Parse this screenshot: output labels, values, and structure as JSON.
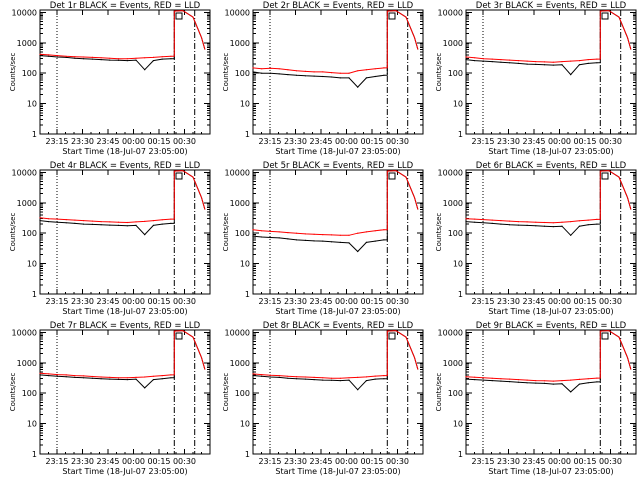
{
  "chart_data": [
    {
      "type": "line",
      "title": "Det 1r BLACK = Events, RED = LLD",
      "xlabel": "Start Time (18-Jul-07 23:05:00)",
      "ylabel": "Counts/sec",
      "yscale": "log",
      "ylim": [
        1,
        12000
      ],
      "x_tick_labels": [
        "23:15",
        "23:30",
        "23:45",
        "00:00",
        "00:15",
        "00:30"
      ],
      "y_tick_labels": [
        "1",
        "10",
        "100",
        "1000",
        "10000"
      ],
      "markers": {
        "dotted": "23:15",
        "dashdot": [
          "00:24",
          "00:36"
        ]
      },
      "series": [
        {
          "name": "BLACK",
          "color": "#000000",
          "values": [
            380,
            360,
            340,
            330,
            310,
            300,
            290,
            280,
            270,
            265,
            260,
            270,
            130,
            260,
            290,
            300
          ]
        },
        {
          "name": "RED",
          "color": "#ff0000",
          "values": [
            420,
            400,
            380,
            360,
            350,
            340,
            330,
            320,
            310,
            300,
            300,
            310,
            320,
            330,
            350,
            360
          ]
        }
      ]
    },
    {
      "type": "line",
      "title": "Det 2r BLACK = Events, RED = LLD",
      "xlabel": "Start Time (18-Jul-07 23:05:00)",
      "ylabel": "Counts/sec",
      "yscale": "log",
      "ylim": [
        1,
        12000
      ],
      "x_tick_labels": [
        "23:15",
        "23:30",
        "23:45",
        "00:00",
        "00:15",
        "00:30"
      ],
      "y_tick_labels": [
        "1",
        "10",
        "100",
        "1000",
        "10000"
      ],
      "markers": {
        "dotted": "23:15",
        "dashdot": [
          "00:24",
          "00:36"
        ]
      },
      "series": [
        {
          "name": "BLACK",
          "color": "#000000",
          "values": [
            110,
            100,
            100,
            95,
            90,
            85,
            82,
            80,
            78,
            75,
            70,
            70,
            35,
            70,
            78,
            85
          ]
        },
        {
          "name": "RED",
          "color": "#ff0000",
          "values": [
            150,
            140,
            145,
            140,
            130,
            120,
            115,
            110,
            110,
            105,
            100,
            100,
            120,
            130,
            140,
            150
          ]
        }
      ]
    },
    {
      "type": "line",
      "title": "Det 3r BLACK = Events, RED = LLD",
      "xlabel": "Start Time (18-Jul-07 23:05:00)",
      "ylabel": "Counts/sec",
      "yscale": "log",
      "ylim": [
        1,
        12000
      ],
      "x_tick_labels": [
        "23:15",
        "23:30",
        "23:45",
        "00:00",
        "00:15",
        "00:30"
      ],
      "y_tick_labels": [
        "1",
        "10",
        "100",
        "1000",
        "10000"
      ],
      "markers": {
        "dotted": "23:15",
        "dashdot": [
          "00:24",
          "00:36"
        ]
      },
      "series": [
        {
          "name": "BLACK",
          "color": "#000000",
          "values": [
            280,
            260,
            250,
            240,
            230,
            220,
            210,
            200,
            195,
            190,
            185,
            190,
            90,
            190,
            210,
            220
          ]
        },
        {
          "name": "RED",
          "color": "#ff0000",
          "values": [
            340,
            320,
            300,
            290,
            280,
            270,
            260,
            250,
            240,
            235,
            230,
            240,
            250,
            260,
            280,
            290
          ]
        }
      ]
    },
    {
      "type": "line",
      "title": "Det 4r BLACK = Events, RED = LLD",
      "xlabel": "Start Time (18-Jul-07 23:05:00)",
      "ylabel": "Counts/sec",
      "yscale": "log",
      "ylim": [
        1,
        12000
      ],
      "x_tick_labels": [
        "23:15",
        "23:30",
        "23:45",
        "00:00",
        "00:15",
        "00:30"
      ],
      "y_tick_labels": [
        "1",
        "10",
        "100",
        "1000",
        "10000"
      ],
      "markers": {
        "dotted": "23:15",
        "dashdot": [
          "00:24",
          "00:36"
        ]
      },
      "series": [
        {
          "name": "BLACK",
          "color": "#000000",
          "values": [
            260,
            240,
            230,
            220,
            210,
            200,
            195,
            190,
            185,
            180,
            175,
            180,
            90,
            180,
            200,
            210
          ]
        },
        {
          "name": "RED",
          "color": "#ff0000",
          "values": [
            320,
            300,
            290,
            280,
            270,
            260,
            250,
            240,
            235,
            230,
            225,
            235,
            245,
            260,
            275,
            290
          ]
        }
      ]
    },
    {
      "type": "line",
      "title": "Det 5r BLACK = Events, RED = LLD",
      "xlabel": "Start Time (18-Jul-07 23:05:00)",
      "ylabel": "Counts/sec",
      "yscale": "log",
      "ylim": [
        1,
        12000
      ],
      "x_tick_labels": [
        "23:15",
        "23:30",
        "23:45",
        "00:00",
        "00:15",
        "00:30"
      ],
      "y_tick_labels": [
        "1",
        "10",
        "100",
        "1000",
        "10000"
      ],
      "markers": {
        "dotted": "23:15",
        "dashdot": [
          "00:24",
          "00:36"
        ]
      },
      "series": [
        {
          "name": "BLACK",
          "color": "#000000",
          "values": [
            80,
            75,
            72,
            70,
            65,
            60,
            58,
            56,
            55,
            52,
            50,
            48,
            25,
            50,
            55,
            60
          ]
        },
        {
          "name": "RED",
          "color": "#ff0000",
          "values": [
            130,
            120,
            115,
            110,
            105,
            100,
            95,
            92,
            90,
            88,
            85,
            85,
            100,
            110,
            120,
            130
          ]
        }
      ]
    },
    {
      "type": "line",
      "title": "Det 6r BLACK = Events, RED = LLD",
      "xlabel": "Start Time (18-Jul-07 23:05:00)",
      "ylabel": "Counts/sec",
      "yscale": "log",
      "ylim": [
        1,
        12000
      ],
      "x_tick_labels": [
        "23:15",
        "23:30",
        "23:45",
        "00:00",
        "00:15",
        "00:30"
      ],
      "y_tick_labels": [
        "1",
        "10",
        "100",
        "1000",
        "10000"
      ],
      "markers": {
        "dotted": "23:15",
        "dashdot": [
          "00:24",
          "00:36"
        ]
      },
      "series": [
        {
          "name": "BLACK",
          "color": "#000000",
          "values": [
            240,
            230,
            220,
            210,
            200,
            190,
            185,
            180,
            175,
            170,
            165,
            170,
            85,
            170,
            190,
            200
          ]
        },
        {
          "name": "RED",
          "color": "#ff0000",
          "values": [
            300,
            290,
            280,
            270,
            260,
            250,
            240,
            235,
            230,
            225,
            220,
            230,
            240,
            255,
            270,
            285
          ]
        }
      ]
    },
    {
      "type": "line",
      "title": "Det 7r BLACK = Events, RED = LLD",
      "xlabel": "Start Time (18-Jul-07 23:05:00)",
      "ylabel": "Counts/sec",
      "yscale": "log",
      "ylim": [
        1,
        12000
      ],
      "x_tick_labels": [
        "23:15",
        "23:30",
        "23:45",
        "00:00",
        "00:15",
        "00:30"
      ],
      "y_tick_labels": [
        "1",
        "10",
        "100",
        "1000",
        "10000"
      ],
      "markers": {
        "dotted": "23:15",
        "dashdot": [
          "00:24",
          "00:36"
        ]
      },
      "series": [
        {
          "name": "BLACK",
          "color": "#000000",
          "values": [
            400,
            380,
            360,
            350,
            330,
            320,
            310,
            300,
            290,
            285,
            280,
            290,
            150,
            280,
            300,
            320
          ]
        },
        {
          "name": "RED",
          "color": "#ff0000",
          "values": [
            450,
            430,
            410,
            400,
            380,
            370,
            355,
            340,
            330,
            320,
            320,
            330,
            340,
            360,
            380,
            400
          ]
        }
      ]
    },
    {
      "type": "line",
      "title": "Det 8r BLACK = Events, RED = LLD",
      "xlabel": "Start Time (18-Jul-07 23:05:00)",
      "ylabel": "Counts/sec",
      "yscale": "log",
      "ylim": [
        1,
        12000
      ],
      "x_tick_labels": [
        "23:15",
        "23:30",
        "23:45",
        "00:00",
        "00:15",
        "00:30"
      ],
      "y_tick_labels": [
        "1",
        "10",
        "100",
        "1000",
        "10000"
      ],
      "markers": {
        "dotted": "23:15",
        "dashdot": [
          "00:24",
          "00:36"
        ]
      },
      "series": [
        {
          "name": "BLACK",
          "color": "#000000",
          "values": [
            380,
            360,
            340,
            330,
            310,
            300,
            290,
            280,
            270,
            265,
            260,
            270,
            130,
            260,
            290,
            300
          ]
        },
        {
          "name": "RED",
          "color": "#ff0000",
          "values": [
            430,
            410,
            390,
            380,
            360,
            350,
            340,
            330,
            320,
            310,
            310,
            320,
            330,
            345,
            365,
            380
          ]
        }
      ]
    },
    {
      "type": "line",
      "title": "Det 9r BLACK = Events, RED = LLD",
      "xlabel": "Start Time (18-Jul-07 23:05:00)",
      "ylabel": "Counts/sec",
      "yscale": "log",
      "ylim": [
        1,
        12000
      ],
      "x_tick_labels": [
        "23:15",
        "23:30",
        "23:45",
        "00:00",
        "00:15",
        "00:30"
      ],
      "y_tick_labels": [
        "1",
        "10",
        "100",
        "1000",
        "10000"
      ],
      "markers": {
        "dotted": "23:15",
        "dashdot": [
          "00:24",
          "00:36"
        ]
      },
      "series": [
        {
          "name": "BLACK",
          "color": "#000000",
          "values": [
            290,
            280,
            270,
            260,
            250,
            240,
            230,
            220,
            215,
            210,
            200,
            205,
            110,
            200,
            220,
            235
          ]
        },
        {
          "name": "RED",
          "color": "#ff0000",
          "values": [
            350,
            335,
            320,
            310,
            300,
            290,
            280,
            270,
            260,
            255,
            250,
            260,
            270,
            285,
            300,
            315
          ]
        }
      ]
    }
  ]
}
